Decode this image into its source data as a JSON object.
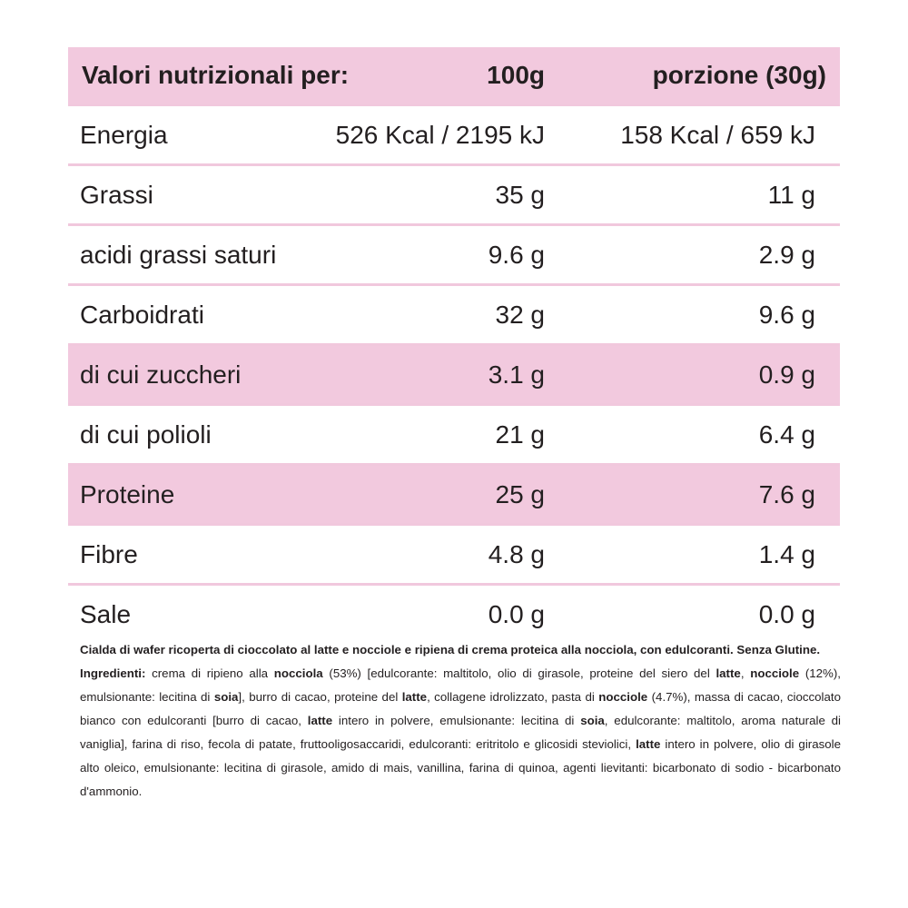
{
  "table": {
    "header": [
      "Valori nutrizionali per:",
      "100g",
      "porzione (30g)"
    ],
    "rows": [
      {
        "cells": [
          "Energia",
          "526 Kcal / 2195 kJ",
          "158 Kcal / 659 kJ"
        ],
        "highlight": false
      },
      {
        "cells": [
          "Grassi",
          "35 g",
          "11 g"
        ],
        "highlight": false
      },
      {
        "cells": [
          "acidi grassi saturi",
          "9.6 g",
          "2.9 g"
        ],
        "highlight": false
      },
      {
        "cells": [
          "Carboidrati",
          "32 g",
          "9.6 g"
        ],
        "highlight": false
      },
      {
        "cells": [
          "di cui zuccheri",
          "3.1 g",
          "0.9 g"
        ],
        "highlight": true
      },
      {
        "cells": [
          "di cui polioli",
          "21 g",
          "6.4 g"
        ],
        "highlight": false
      },
      {
        "cells": [
          "Proteine",
          "25 g",
          "7.6 g"
        ],
        "highlight": true
      },
      {
        "cells": [
          "Fibre",
          "4.8 g",
          "1.4 g"
        ],
        "highlight": false
      },
      {
        "cells": [
          "Sale",
          "0.0 g",
          "0.0 g"
        ],
        "highlight": false
      }
    ]
  },
  "description": [
    [
      {
        "text": "Cialda di wafer ricoperta di cioccolato al latte e nocciole e ripiena di crema proteica alla nocciola, con edulcoranti. Senza Glutine.",
        "bold": true
      }
    ],
    [
      {
        "text": "Ingredienti:",
        "bold": true
      },
      {
        "text": " crema di ripieno alla ",
        "bold": false
      },
      {
        "text": "nocciola",
        "bold": true
      },
      {
        "text": " (53%) [edulcorante: maltitolo, olio di girasole, proteine del siero del ",
        "bold": false
      },
      {
        "text": "latte",
        "bold": true
      },
      {
        "text": ", ",
        "bold": false
      },
      {
        "text": "nocciole",
        "bold": true
      },
      {
        "text": " (12%), emulsionante: lecitina di ",
        "bold": false
      },
      {
        "text": "soia",
        "bold": true
      },
      {
        "text": "], burro di cacao, proteine del ",
        "bold": false
      },
      {
        "text": "latte",
        "bold": true
      },
      {
        "text": ", collagene idrolizzato, pasta di ",
        "bold": false
      },
      {
        "text": "nocciole",
        "bold": true
      },
      {
        "text": " (4.7%), massa di cacao, cioccolato bianco con edulcoranti [burro di cacao, ",
        "bold": false
      },
      {
        "text": "latte",
        "bold": true
      },
      {
        "text": " intero in polvere, emulsionante: lecitina di ",
        "bold": false
      },
      {
        "text": "soia",
        "bold": true
      },
      {
        "text": ", edulcorante: maltitolo, aroma naturale di vaniglia], farina di riso, fecola di patate, fruttooligosaccaridi, edulcoranti: eritritolo e glicosidi steviolici, ",
        "bold": false
      },
      {
        "text": "latte",
        "bold": true
      },
      {
        "text": " intero in polvere, olio di girasole alto oleico, emulsionante: lecitina di girasole, amido di mais, vanillina, farina di quinoa, agenti lievitanti: bicarbonato di sodio - bicarbonato d'ammonio.",
        "bold": false
      }
    ]
  ]
}
